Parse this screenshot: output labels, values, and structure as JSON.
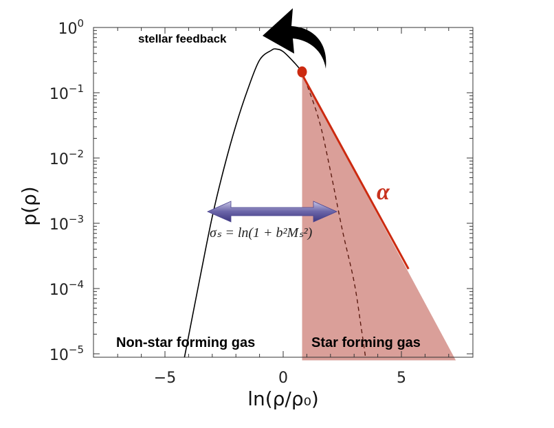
{
  "chart_data": {
    "type": "line",
    "xlabel": "ln(ρ/ρ₀)",
    "ylabel": "p(ρ)",
    "xlim": [
      -7.8,
      7.8
    ],
    "ylim_log10": [
      -5.1,
      0
    ],
    "y_scale": "log",
    "x_ticks": [
      {
        "value": -5,
        "label": "−5"
      },
      {
        "value": 0,
        "label": "0"
      },
      {
        "value": 5,
        "label": "5"
      }
    ],
    "y_ticks": [
      {
        "exp": 0,
        "base": "10",
        "power": "0"
      },
      {
        "exp": -1,
        "base": "10",
        "power": "−1"
      },
      {
        "exp": -2,
        "base": "10",
        "power": "−2"
      },
      {
        "exp": -3,
        "base": "10",
        "power": "−3"
      },
      {
        "exp": -4,
        "base": "10",
        "power": "−4"
      },
      {
        "exp": -5,
        "base": "10",
        "power": "−5"
      }
    ],
    "series": [
      {
        "style": "solid-black",
        "x": [
          -4.2,
          -3.5,
          -3.0,
          -2.5,
          -2.0,
          -1.5,
          -1.0,
          -0.5,
          -0.3,
          0.0,
          0.5,
          0.8
        ],
        "log10_y": [
          -5.1,
          -3.8,
          -2.9,
          -2.15,
          -1.5,
          -0.95,
          -0.5,
          -0.35,
          -0.33,
          -0.37,
          -0.55,
          -0.68
        ]
      },
      {
        "style": "dashed-darkred",
        "x": [
          0.8,
          1.5,
          2.0,
          2.5,
          3.0,
          3.3,
          3.5
        ],
        "log10_y": [
          -0.68,
          -1.4,
          -2.2,
          -3.1,
          -3.9,
          -4.6,
          -5.1
        ]
      },
      {
        "style": "solid-red-powerlaw",
        "x": [
          0.8,
          5.3
        ],
        "log10_y": [
          -0.72,
          -3.7
        ]
      }
    ],
    "shaded_region": {
      "color": "#d89a93",
      "x": [
        0.8,
        0.8,
        7.3
      ],
      "log10_y": [
        -0.72,
        -5.1,
        -5.1
      ]
    },
    "marker": {
      "x": 0.8,
      "log10_y": -0.68,
      "color": "#cc2a10"
    },
    "annotations": {
      "stellar_feedback": "stellar feedback",
      "alpha": "α",
      "non_star_forming": "Non-star forming gas",
      "star_forming": "Star forming gas",
      "sigma_formula_main": "σₛ = ln(1 + b²Mₛ²)"
    }
  }
}
